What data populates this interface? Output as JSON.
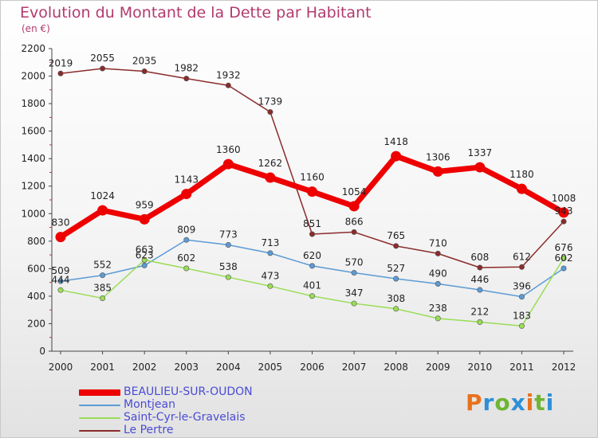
{
  "title": "Evolution du Montant de la Dette par Habitant",
  "subtitle": "(en €)",
  "logo": {
    "letters": [
      "P",
      "r",
      "o",
      "x",
      "i",
      "t",
      "i"
    ],
    "colors": [
      "#e8721c",
      "#2e8fd8",
      "#6fb534",
      "#2e8fd8",
      "#e8721c",
      "#6fb534",
      "#2e8fd8"
    ]
  },
  "chart_data": {
    "type": "line",
    "title": "Evolution du Montant de la Dette par Habitant",
    "subtitle": "(en €)",
    "x": [
      "2000",
      "2001",
      "2002",
      "2003",
      "2004",
      "2005",
      "2006",
      "2007",
      "2008",
      "2009",
      "2010",
      "2011",
      "2012"
    ],
    "ylim": [
      0,
      2200
    ],
    "yticks": [
      0,
      200,
      400,
      600,
      800,
      1000,
      1200,
      1400,
      1600,
      1800,
      2000,
      2200
    ],
    "grid": false,
    "legend_position": "bottom-left",
    "series": [
      {
        "name": "BEAULIEU-SUR-OUDON",
        "color": "#ee0000",
        "emphasis": true,
        "values": [
          830,
          1024,
          959,
          1143,
          1360,
          1262,
          1160,
          1054,
          1418,
          1306,
          1337,
          1180,
          1008
        ],
        "labels": [
          "830",
          "1024",
          "959",
          "1143",
          "1360",
          "1262",
          "1160",
          "1054",
          "1418",
          "1306",
          "1337",
          "1180",
          "1008"
        ]
      },
      {
        "name": "Montjean",
        "color": "#5b9bd5",
        "emphasis": false,
        "values": [
          509,
          552,
          623,
          809,
          773,
          713,
          620,
          570,
          527,
          490,
          446,
          396,
          602
        ],
        "labels": [
          "509",
          "552",
          "623",
          "809",
          "773",
          "713",
          "620",
          "570",
          "527",
          "490",
          "446",
          "396",
          "602"
        ]
      },
      {
        "name": "Saint-Cyr-le-Gravelais",
        "color": "#99dd55",
        "emphasis": false,
        "values": [
          444,
          385,
          663,
          602,
          538,
          473,
          401,
          347,
          308,
          238,
          212,
          183,
          676
        ],
        "labels": [
          "444",
          "385",
          "663",
          "602",
          "538",
          "473",
          "401",
          "347",
          "308",
          "238",
          "212",
          "183",
          "676"
        ]
      },
      {
        "name": "Le Pertre",
        "color": "#8b2b2b",
        "emphasis": false,
        "values": [
          2019,
          2055,
          2035,
          1982,
          1932,
          1739,
          851,
          866,
          765,
          710,
          608,
          612,
          943
        ],
        "labels": [
          "2019",
          "2055",
          "2035",
          "1982",
          "1932",
          "1739",
          "851",
          "866",
          "765",
          "710",
          "608",
          "612",
          "943"
        ]
      }
    ]
  }
}
